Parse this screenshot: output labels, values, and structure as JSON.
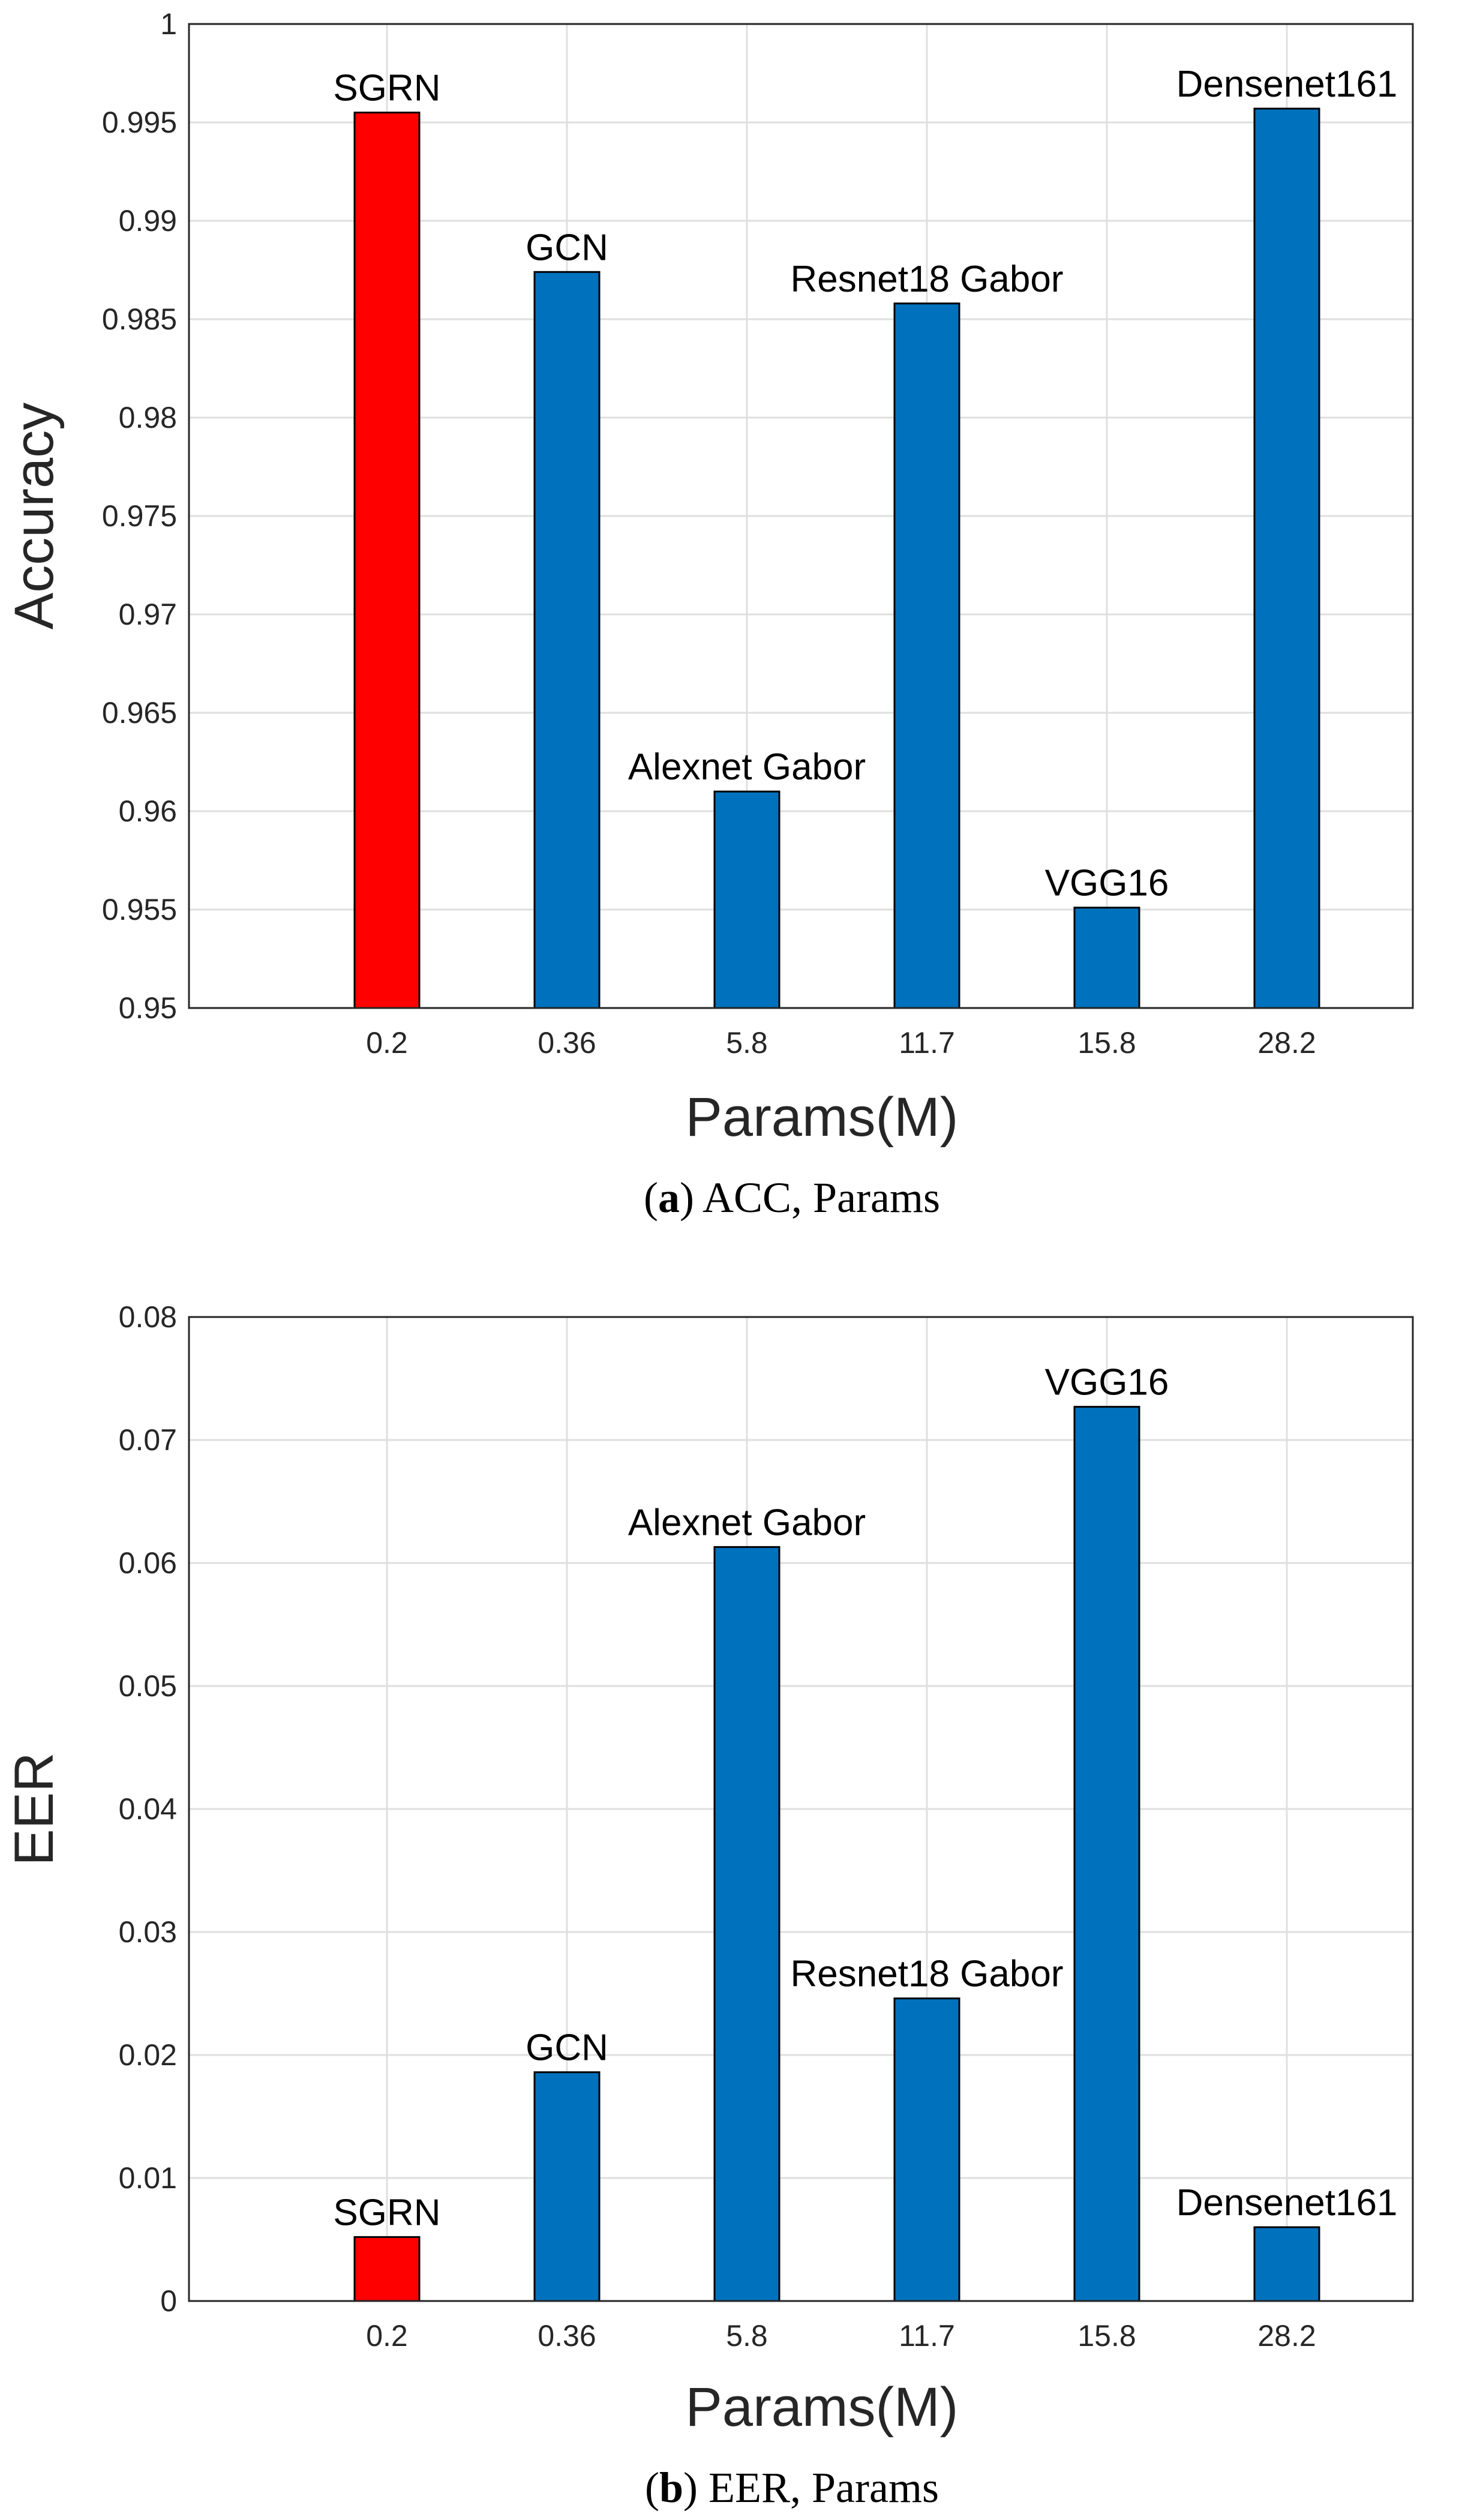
{
  "colors": {
    "highlight": "#ff0000",
    "default": "#0072bd",
    "grid": "#dfdfdf",
    "axis": "#262626"
  },
  "chart_data": [
    {
      "type": "bar",
      "id": "a",
      "caption_letter": "a",
      "caption_text": "ACC, Params",
      "categories": [
        "0.2",
        "0.36",
        "5.8",
        "11.7",
        "15.8",
        "28.2"
      ],
      "bar_labels": [
        "SGRN",
        "GCN",
        "Alexnet Gabor",
        "Resnet18 Gabor",
        "VGG16",
        "Densenet161"
      ],
      "values": [
        0.9955,
        0.9874,
        0.961,
        0.9858,
        0.9551,
        0.9957
      ],
      "highlight_index": 0,
      "xlabel": "Params(M)",
      "ylabel": "Accuracy",
      "ylim": [
        0.95,
        1.0
      ],
      "yticks": [
        0.95,
        0.955,
        0.96,
        0.965,
        0.97,
        0.975,
        0.98,
        0.985,
        0.99,
        0.995,
        1
      ],
      "ytick_labels": [
        "0.95",
        "0.955",
        "0.96",
        "0.965",
        "0.97",
        "0.975",
        "0.98",
        "0.985",
        "0.99",
        "0.995",
        "1"
      ],
      "grid": true
    },
    {
      "type": "bar",
      "id": "b",
      "caption_letter": "b",
      "caption_text": "EER, Params",
      "categories": [
        "0.2",
        "0.36",
        "5.8",
        "11.7",
        "15.8",
        "28.2"
      ],
      "bar_labels": [
        "SGRN",
        "GCN",
        "Alexnet Gabor",
        "Resnet18 Gabor",
        "VGG16",
        "Densenet161"
      ],
      "values": [
        0.0052,
        0.0186,
        0.0613,
        0.0246,
        0.0727,
        0.006
      ],
      "highlight_index": 0,
      "xlabel": "Params(M)",
      "ylabel": "EER",
      "ylim": [
        0,
        0.08
      ],
      "yticks": [
        0,
        0.01,
        0.02,
        0.03,
        0.04,
        0.05,
        0.06,
        0.07,
        0.08
      ],
      "ytick_labels": [
        "0",
        "0.01",
        "0.02",
        "0.03",
        "0.04",
        "0.05",
        "0.06",
        "0.07",
        "0.08"
      ],
      "grid": true
    }
  ]
}
